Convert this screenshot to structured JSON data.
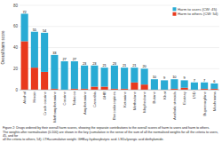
{
  "chart_data": {
    "type": "bar",
    "stacked": true,
    "categories": [
      "Alcohol",
      "Heroin",
      "Crack cocaine",
      "Methamphetamine",
      "Cocaine",
      "Tobacco",
      "Amphetamine",
      "Cannabis",
      "GHB",
      "Benzodiazepines",
      "Ketamine",
      "Methadone",
      "Mephedrone",
      "Butane",
      "Khat",
      "Anabolic steroids",
      "Ecstasy",
      "LSD",
      "Buprenorphine",
      "Mushrooms"
    ],
    "series": [
      {
        "name": "Harm to others (CW: 54)",
        "color": "#E8391D",
        "values": [
          46,
          21,
          17,
          1,
          0,
          1,
          1,
          3,
          3,
          1,
          1,
          7,
          5,
          0,
          0,
          1,
          2,
          0,
          1,
          1
        ]
      },
      {
        "name": "Harm to users (CW: 45)",
        "color": "#29ABD4",
        "values": [
          26,
          34,
          37,
          32,
          27,
          26,
          22,
          20,
          18,
          22,
          20,
          14,
          15,
          10,
          9,
          9,
          7,
          7,
          6,
          5
        ]
      }
    ],
    "totals": [
      72,
      55,
      54,
      33,
      27,
      27,
      23,
      23,
      21,
      23,
      21,
      21,
      20,
      10,
      9,
      10,
      9,
      7,
      7,
      6
    ],
    "y_label": "Overall harm score",
    "ylim": [
      0,
      80
    ],
    "yticks": [
      0,
      20,
      40,
      60,
      80
    ],
    "grid": true,
    "legend": "upper right",
    "annotations": [
      "Figure 2: Drugs ordered by their overall harm scores, showing the separate contributions to the overall scores of harm to users and harm to others.",
      "The weights after normalisation (0-100) are shown in the key (cumulative in the sense of the sum of all the normalised weights for all the criteria to users, 45, and for",
      "all the criteria to others, 54). LTH=cumulative weight. GHB=γ-hydroxybutyric acid. LSD=lysergic acid diethylamide."
    ]
  }
}
